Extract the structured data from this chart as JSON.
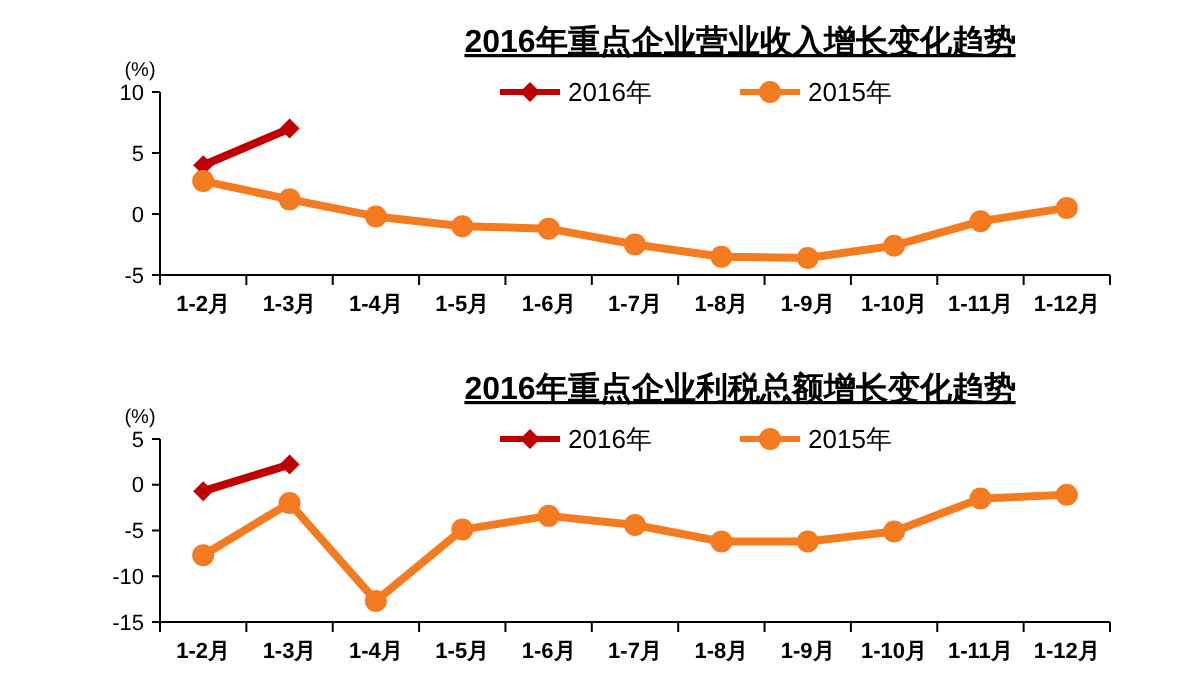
{
  "chart_data": [
    {
      "type": "line",
      "title": "2016年重点企业营业收入增长变化趋势",
      "ylabel": "(%)",
      "categories": [
        "1-2月",
        "1-3月",
        "1-4月",
        "1-5月",
        "1-6月",
        "1-7月",
        "1-8月",
        "1-9月",
        "1-10月",
        "1-11月",
        "1-12月"
      ],
      "series": [
        {
          "name": "2016年",
          "color": "#c00000",
          "marker": "diamond",
          "values": [
            4.0,
            7.0,
            null,
            null,
            null,
            null,
            null,
            null,
            null,
            null,
            null
          ]
        },
        {
          "name": "2015年",
          "color": "#f47b20",
          "marker": "circle",
          "values": [
            2.7,
            1.2,
            -0.2,
            -1.0,
            -1.2,
            -2.5,
            -3.5,
            -3.6,
            -2.6,
            -0.6,
            0.5
          ]
        }
      ],
      "ylim": [
        -5,
        10
      ],
      "yticks": [
        -5,
        0,
        5,
        10
      ],
      "legend": "top",
      "grid": false
    },
    {
      "type": "line",
      "title": "2016年重点企业利税总额增长变化趋势",
      "ylabel": "(%)",
      "categories": [
        "1-2月",
        "1-3月",
        "1-4月",
        "1-5月",
        "1-6月",
        "1-7月",
        "1-8月",
        "1-9月",
        "1-10月",
        "1-11月",
        "1-12月"
      ],
      "series": [
        {
          "name": "2016年",
          "color": "#c00000",
          "marker": "diamond",
          "values": [
            -0.7,
            2.2,
            null,
            null,
            null,
            null,
            null,
            null,
            null,
            null,
            null
          ]
        },
        {
          "name": "2015年",
          "color": "#f47b20",
          "marker": "circle",
          "values": [
            -7.7,
            -2.0,
            -12.7,
            -4.9,
            -3.4,
            -4.4,
            -6.2,
            -6.2,
            -5.1,
            -1.5,
            -1.1
          ]
        }
      ],
      "ylim": [
        -15,
        5
      ],
      "yticks": [
        -15,
        -10,
        -5,
        0,
        5
      ],
      "legend": "top",
      "grid": false
    }
  ]
}
